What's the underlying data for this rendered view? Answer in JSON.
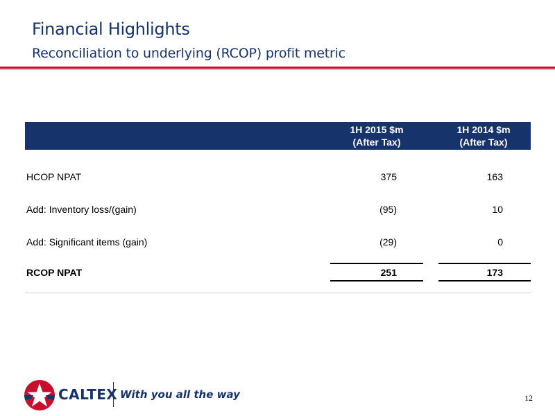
{
  "header": {
    "title": "Financial Highlights",
    "subtitle": "Reconciliation to underlying (RCOP) profit metric"
  },
  "table": {
    "columns": [
      {
        "line1": "1H 2015 $m",
        "line2": "(After Tax)"
      },
      {
        "line1": "1H 2014 $m",
        "line2": "(After Tax)"
      }
    ],
    "rows": [
      {
        "label": "HCOP NPAT",
        "v1": "375",
        "v2": "163"
      },
      {
        "label": "Add: Inventory loss/(gain)",
        "v1": "(95)",
        "v2": "10"
      },
      {
        "label": "Add: Significant items (gain)",
        "v1": "(29)",
        "v2": "0"
      },
      {
        "label": "RCOP NPAT",
        "v1": "251",
        "v2": "173"
      }
    ]
  },
  "footer": {
    "brand": "CALTEX",
    "tagline": "With you all the way",
    "page_number": "12",
    "logo_icon": "caltex-star-icon"
  },
  "colors": {
    "navy": "#17336b",
    "red": "#c8102e"
  }
}
